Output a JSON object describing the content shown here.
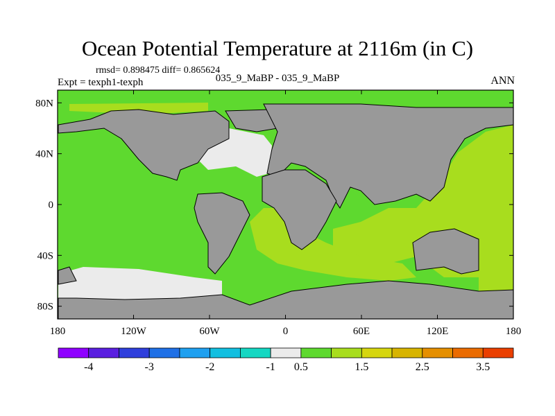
{
  "title": "Ocean Potential Temperature at 2116m (in C)",
  "stats_line": "rmsd= 0.898475 diff= 0.865624",
  "experiment_line": "Expt = texph1-texph",
  "center_label": "035_9_MaBP - 035_9_MaBP",
  "season_label": "ANN",
  "map": {
    "projection": "cylindrical equidistant",
    "lon_range": [
      -180,
      180
    ],
    "lat_range": [
      -90,
      90
    ],
    "lat_ticks": [
      {
        "value": 80,
        "label": "80N"
      },
      {
        "value": 40,
        "label": "40N"
      },
      {
        "value": 0,
        "label": "0"
      },
      {
        "value": -40,
        "label": "40S"
      },
      {
        "value": -80,
        "label": "80S"
      }
    ],
    "lon_ticks": [
      {
        "value": -180,
        "label": "180"
      },
      {
        "value": -120,
        "label": "120W"
      },
      {
        "value": -60,
        "label": "60W"
      },
      {
        "value": 0,
        "label": "0"
      },
      {
        "value": 60,
        "label": "60E"
      },
      {
        "value": 120,
        "label": "120E"
      },
      {
        "value": 180,
        "label": "180"
      }
    ],
    "colors": {
      "land": "#999999",
      "coast": "#000000"
    }
  },
  "colorbar": {
    "colors": [
      "#8f00ff",
      "#5a1fe0",
      "#2f3fdc",
      "#1f70e6",
      "#1fa0f0",
      "#12bfe0",
      "#15d7c2",
      "#ebebeb",
      "#5ed92f",
      "#a8dd1e",
      "#d6d60f",
      "#d7b400",
      "#e58f00",
      "#ea6b00",
      "#ea3f00"
    ],
    "labels": [
      {
        "index": 1,
        "text": "-4"
      },
      {
        "index": 3,
        "text": "-3"
      },
      {
        "index": 5,
        "text": "-2"
      },
      {
        "index": 7,
        "text": "-1"
      },
      {
        "index": 8,
        "text": "0.5"
      },
      {
        "index": 10,
        "text": "1.5"
      },
      {
        "index": 12,
        "text": "2.5"
      },
      {
        "index": 14,
        "text": "3.5"
      }
    ]
  }
}
